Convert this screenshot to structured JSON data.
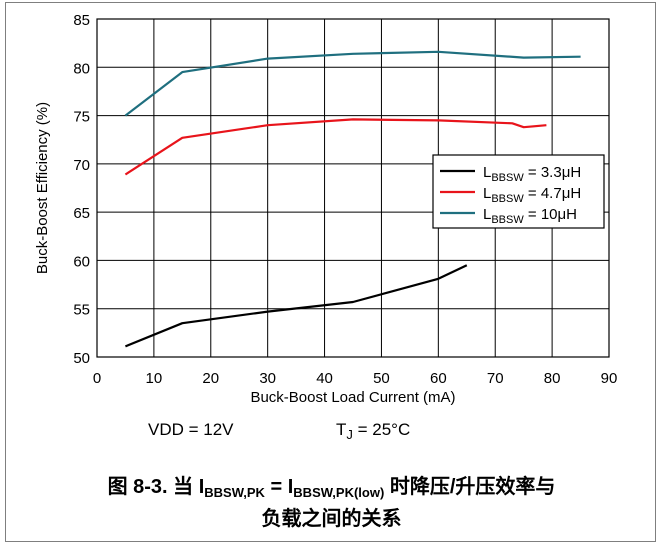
{
  "chart_data": {
    "type": "line",
    "xlabel": "Buck-Boost Load Current (mA)",
    "ylabel": "Buck-Boost Efficiency (%)",
    "xlim": [
      0,
      90
    ],
    "ylim": [
      50,
      85
    ],
    "xticks": [
      0,
      10,
      20,
      30,
      40,
      50,
      60,
      70,
      80,
      90
    ],
    "yticks": [
      50,
      55,
      60,
      65,
      70,
      75,
      80,
      85
    ],
    "grid": true,
    "legend_position": "right",
    "series": [
      {
        "name_main": "L",
        "name_sub": "BBSW",
        "name_value": " = 3.3μH",
        "color": "#000000",
        "x": [
          5,
          15,
          30,
          45,
          60,
          65
        ],
        "y": [
          51.1,
          53.5,
          54.7,
          55.7,
          58.1,
          59.5
        ]
      },
      {
        "name_main": "L",
        "name_sub": "BBSW",
        "name_value": " = 4.7μH",
        "color": "#e8141b",
        "x": [
          5,
          15,
          30,
          45,
          60,
          73,
          75,
          79
        ],
        "y": [
          68.9,
          72.7,
          74.0,
          74.6,
          74.5,
          74.2,
          73.8,
          74.0
        ]
      },
      {
        "name_main": "L",
        "name_sub": "BBSW",
        "name_value": " = 10μH",
        "color": "#1f6f7f",
        "x": [
          5,
          15,
          30,
          45,
          60,
          75,
          85
        ],
        "y": [
          75.0,
          79.5,
          80.9,
          81.4,
          81.6,
          81.0,
          81.1
        ]
      }
    ]
  },
  "conditions": {
    "vdd": "VDD = 12V",
    "tj_main": "T",
    "tj_sub": "J",
    "tj_value": " = 25°C"
  },
  "caption": {
    "fig": "图 8-3. 当 I",
    "sub1": "BBSW,PK",
    "mid": " = I",
    "sub2": "BBSW,PK(low)",
    "tail": " 时降压/升压效率与",
    "line2": "负载之间的关系"
  }
}
